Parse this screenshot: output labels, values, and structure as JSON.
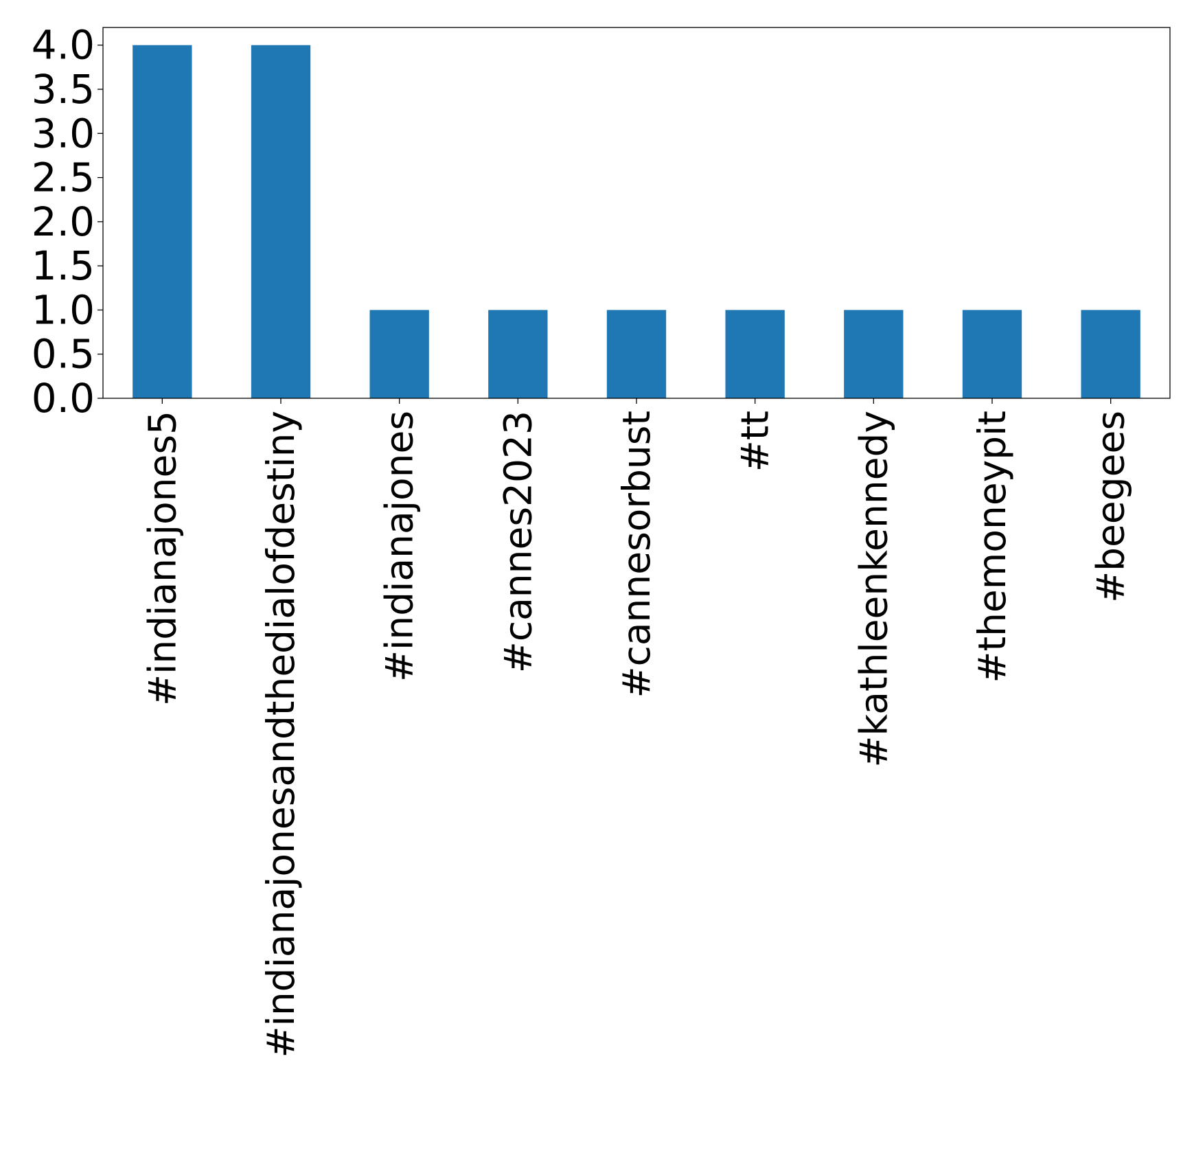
{
  "chart_data": {
    "type": "bar",
    "categories": [
      "#indianajones5",
      "#indianajonesandthedialofdestiny",
      "#indianajones",
      "#cannes2023",
      "#cannesorbust",
      "#tt",
      "#kathleenkennedy",
      "#themoneypit",
      "#beegees"
    ],
    "values": [
      4,
      4,
      1,
      1,
      1,
      1,
      1,
      1,
      1
    ],
    "ylim": [
      0,
      4.2
    ],
    "yticks": [
      "0.0",
      "0.5",
      "1.0",
      "1.5",
      "2.0",
      "2.5",
      "3.0",
      "3.5",
      "4.0"
    ],
    "grid": false,
    "legend": "none",
    "bar_color": "#1f77b4"
  }
}
